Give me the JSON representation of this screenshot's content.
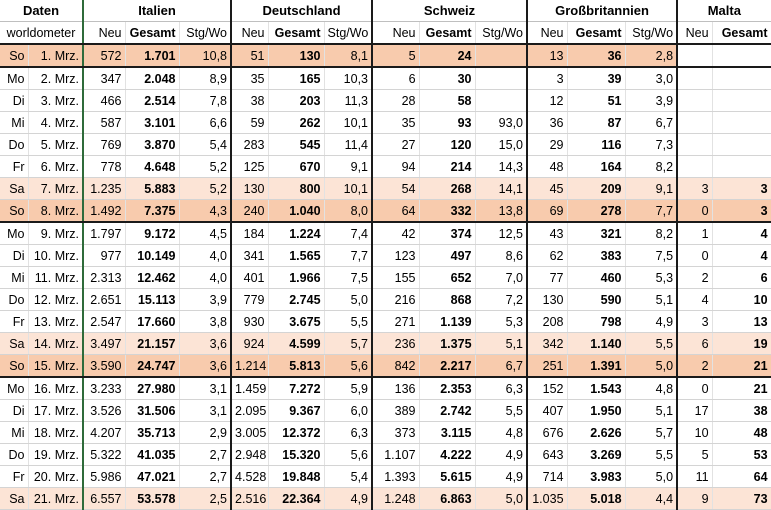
{
  "header": {
    "daten": "Daten",
    "source": "worldometer",
    "countries": [
      "Italien",
      "Deutschland",
      "Schweiz",
      "Großbritannien",
      "Malta"
    ],
    "col_neu": "Neu",
    "col_gesamt": "Gesamt",
    "col_stgwo": "Stg/Wo"
  },
  "colors": {
    "weekend_dark": "#f8cbad",
    "weekend_light": "#fce4d6",
    "date_separator": "#2f6b3a"
  },
  "rows": [
    {
      "day": "So",
      "date": "1. Mrz.",
      "it": [
        "572",
        "1.701",
        "10,8"
      ],
      "de": [
        "51",
        "130",
        "8,1"
      ],
      "ch": [
        "5",
        "24",
        ""
      ],
      "gb": [
        "13",
        "36",
        "2,8"
      ],
      "mt": [
        "",
        ""
      ]
    },
    {
      "day": "Mo",
      "date": "2. Mrz.",
      "it": [
        "347",
        "2.048",
        "8,9"
      ],
      "de": [
        "35",
        "165",
        "10,3"
      ],
      "ch": [
        "6",
        "30",
        ""
      ],
      "gb": [
        "3",
        "39",
        "3,0"
      ],
      "mt": [
        "",
        ""
      ]
    },
    {
      "day": "Di",
      "date": "3. Mrz.",
      "it": [
        "466",
        "2.514",
        "7,8"
      ],
      "de": [
        "38",
        "203",
        "11,3"
      ],
      "ch": [
        "28",
        "58",
        ""
      ],
      "gb": [
        "12",
        "51",
        "3,9"
      ],
      "mt": [
        "",
        ""
      ]
    },
    {
      "day": "Mi",
      "date": "4. Mrz.",
      "it": [
        "587",
        "3.101",
        "6,6"
      ],
      "de": [
        "59",
        "262",
        "10,1"
      ],
      "ch": [
        "35",
        "93",
        "93,0"
      ],
      "gb": [
        "36",
        "87",
        "6,7"
      ],
      "mt": [
        "",
        ""
      ]
    },
    {
      "day": "Do",
      "date": "5. Mrz.",
      "it": [
        "769",
        "3.870",
        "5,4"
      ],
      "de": [
        "283",
        "545",
        "11,4"
      ],
      "ch": [
        "27",
        "120",
        "15,0"
      ],
      "gb": [
        "29",
        "116",
        "7,3"
      ],
      "mt": [
        "",
        ""
      ]
    },
    {
      "day": "Fr",
      "date": "6. Mrz.",
      "it": [
        "778",
        "4.648",
        "5,2"
      ],
      "de": [
        "125",
        "670",
        "9,1"
      ],
      "ch": [
        "94",
        "214",
        "14,3"
      ],
      "gb": [
        "48",
        "164",
        "8,2"
      ],
      "mt": [
        "",
        ""
      ]
    },
    {
      "day": "Sa",
      "date": "7. Mrz.",
      "it": [
        "1.235",
        "5.883",
        "5,2"
      ],
      "de": [
        "130",
        "800",
        "10,1"
      ],
      "ch": [
        "54",
        "268",
        "14,1"
      ],
      "gb": [
        "45",
        "209",
        "9,1"
      ],
      "mt": [
        "3",
        "3"
      ]
    },
    {
      "day": "So",
      "date": "8. Mrz.",
      "it": [
        "1.492",
        "7.375",
        "4,3"
      ],
      "de": [
        "240",
        "1.040",
        "8,0"
      ],
      "ch": [
        "64",
        "332",
        "13,8"
      ],
      "gb": [
        "69",
        "278",
        "7,7"
      ],
      "mt": [
        "0",
        "3"
      ]
    },
    {
      "day": "Mo",
      "date": "9. Mrz.",
      "it": [
        "1.797",
        "9.172",
        "4,5"
      ],
      "de": [
        "184",
        "1.224",
        "7,4"
      ],
      "ch": [
        "42",
        "374",
        "12,5"
      ],
      "gb": [
        "43",
        "321",
        "8,2"
      ],
      "mt": [
        "1",
        "4"
      ]
    },
    {
      "day": "Di",
      "date": "10. Mrz.",
      "it": [
        "977",
        "10.149",
        "4,0"
      ],
      "de": [
        "341",
        "1.565",
        "7,7"
      ],
      "ch": [
        "123",
        "497",
        "8,6"
      ],
      "gb": [
        "62",
        "383",
        "7,5"
      ],
      "mt": [
        "0",
        "4"
      ]
    },
    {
      "day": "Mi",
      "date": "11. Mrz.",
      "it": [
        "2.313",
        "12.462",
        "4,0"
      ],
      "de": [
        "401",
        "1.966",
        "7,5"
      ],
      "ch": [
        "155",
        "652",
        "7,0"
      ],
      "gb": [
        "77",
        "460",
        "5,3"
      ],
      "mt": [
        "2",
        "6"
      ]
    },
    {
      "day": "Do",
      "date": "12. Mrz.",
      "it": [
        "2.651",
        "15.113",
        "3,9"
      ],
      "de": [
        "779",
        "2.745",
        "5,0"
      ],
      "ch": [
        "216",
        "868",
        "7,2"
      ],
      "gb": [
        "130",
        "590",
        "5,1"
      ],
      "mt": [
        "4",
        "10"
      ]
    },
    {
      "day": "Fr",
      "date": "13. Mrz.",
      "it": [
        "2.547",
        "17.660",
        "3,8"
      ],
      "de": [
        "930",
        "3.675",
        "5,5"
      ],
      "ch": [
        "271",
        "1.139",
        "5,3"
      ],
      "gb": [
        "208",
        "798",
        "4,9"
      ],
      "mt": [
        "3",
        "13"
      ]
    },
    {
      "day": "Sa",
      "date": "14. Mrz.",
      "it": [
        "3.497",
        "21.157",
        "3,6"
      ],
      "de": [
        "924",
        "4.599",
        "5,7"
      ],
      "ch": [
        "236",
        "1.375",
        "5,1"
      ],
      "gb": [
        "342",
        "1.140",
        "5,5"
      ],
      "mt": [
        "6",
        "19"
      ]
    },
    {
      "day": "So",
      "date": "15. Mrz.",
      "it": [
        "3.590",
        "24.747",
        "3,6"
      ],
      "de": [
        "1.214",
        "5.813",
        "5,6"
      ],
      "ch": [
        "842",
        "2.217",
        "6,7"
      ],
      "gb": [
        "251",
        "1.391",
        "5,0"
      ],
      "mt": [
        "2",
        "21"
      ]
    },
    {
      "day": "Mo",
      "date": "16. Mrz.",
      "it": [
        "3.233",
        "27.980",
        "3,1"
      ],
      "de": [
        "1.459",
        "7.272",
        "5,9"
      ],
      "ch": [
        "136",
        "2.353",
        "6,3"
      ],
      "gb": [
        "152",
        "1.543",
        "4,8"
      ],
      "mt": [
        "0",
        "21"
      ]
    },
    {
      "day": "Di",
      "date": "17. Mrz.",
      "it": [
        "3.526",
        "31.506",
        "3,1"
      ],
      "de": [
        "2.095",
        "9.367",
        "6,0"
      ],
      "ch": [
        "389",
        "2.742",
        "5,5"
      ],
      "gb": [
        "407",
        "1.950",
        "5,1"
      ],
      "mt": [
        "17",
        "38"
      ]
    },
    {
      "day": "Mi",
      "date": "18. Mrz.",
      "it": [
        "4.207",
        "35.713",
        "2,9"
      ],
      "de": [
        "3.005",
        "12.372",
        "6,3"
      ],
      "ch": [
        "373",
        "3.115",
        "4,8"
      ],
      "gb": [
        "676",
        "2.626",
        "5,7"
      ],
      "mt": [
        "10",
        "48"
      ]
    },
    {
      "day": "Do",
      "date": "19. Mrz.",
      "it": [
        "5.322",
        "41.035",
        "2,7"
      ],
      "de": [
        "2.948",
        "15.320",
        "5,6"
      ],
      "ch": [
        "1.107",
        "4.222",
        "4,9"
      ],
      "gb": [
        "643",
        "3.269",
        "5,5"
      ],
      "mt": [
        "5",
        "53"
      ]
    },
    {
      "day": "Fr",
      "date": "20. Mrz.",
      "it": [
        "5.986",
        "47.021",
        "2,7"
      ],
      "de": [
        "4.528",
        "19.848",
        "5,4"
      ],
      "ch": [
        "1.393",
        "5.615",
        "4,9"
      ],
      "gb": [
        "714",
        "3.983",
        "5,0"
      ],
      "mt": [
        "11",
        "64"
      ]
    },
    {
      "day": "Sa",
      "date": "21. Mrz.",
      "it": [
        "6.557",
        "53.578",
        "2,5"
      ],
      "de": [
        "2.516",
        "22.364",
        "4,9"
      ],
      "ch": [
        "1.248",
        "6.863",
        "5,0"
      ],
      "gb": [
        "1.035",
        "5.018",
        "4,4"
      ],
      "mt": [
        "9",
        "73"
      ]
    }
  ]
}
